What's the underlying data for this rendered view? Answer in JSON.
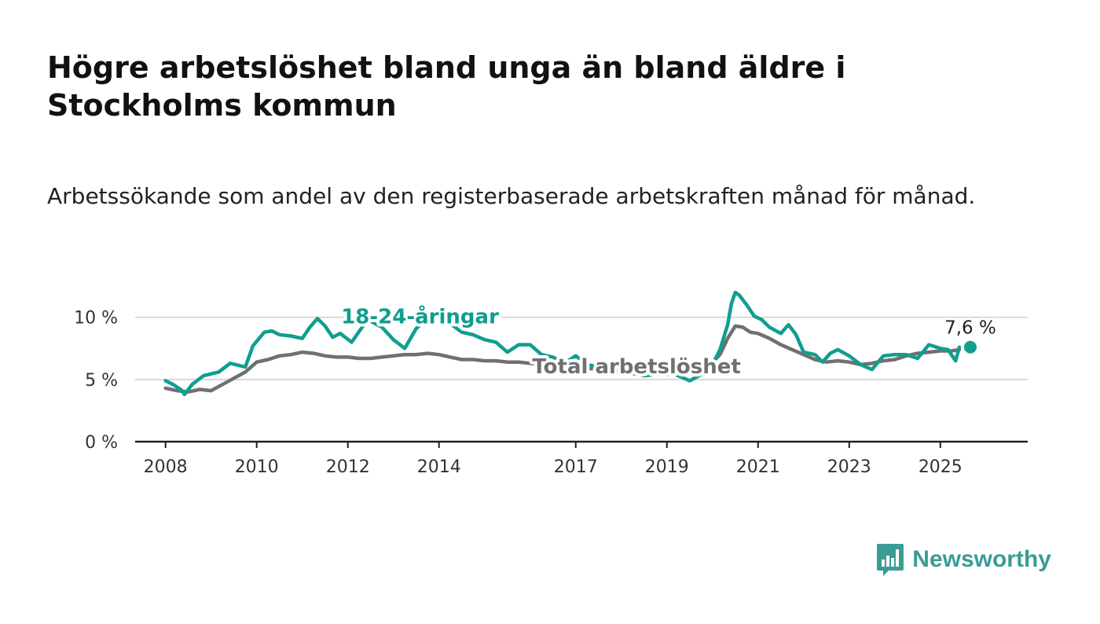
{
  "title": "Högre arbetslöshet bland unga än bland äldre i Stockholms kommun",
  "subtitle": "Arbetssökande som andel av den registerbaserade arbetskraften månad för månad.",
  "brand": {
    "name": "Newsworthy",
    "color": "#3a9c96"
  },
  "chart_data": {
    "type": "line",
    "x_axis": {
      "type": "date",
      "range": [
        "2007-05",
        "2026-12"
      ],
      "ticks": [
        {
          "date": "2008-01",
          "label": "2008"
        },
        {
          "date": "2010-01",
          "label": "2010"
        },
        {
          "date": "2012-01",
          "label": "2012"
        },
        {
          "date": "2014-01",
          "label": "2014"
        },
        {
          "date": "2017-01",
          "label": "2017"
        },
        {
          "date": "2019-01",
          "label": "2019"
        },
        {
          "date": "2021-01",
          "label": "2021"
        },
        {
          "date": "2023-01",
          "label": "2023"
        },
        {
          "date": "2025-01",
          "label": "2025"
        }
      ]
    },
    "y_axis": {
      "range": [
        0,
        11.5
      ],
      "ticks": [
        {
          "value": 0,
          "label": "0 %"
        },
        {
          "value": 5,
          "label": "5 %"
        },
        {
          "value": 10,
          "label": "10 %"
        }
      ]
    },
    "grid": true,
    "series": [
      {
        "name": "Total arbetslöshet",
        "color": "#707070",
        "label_position": "inline-middle",
        "points": [
          [
            "2008-01",
            4.3
          ],
          [
            "2008-04",
            4.1
          ],
          [
            "2008-07",
            4.0
          ],
          [
            "2008-10",
            4.2
          ],
          [
            "2009-01",
            4.1
          ],
          [
            "2009-04",
            4.6
          ],
          [
            "2009-07",
            5.1
          ],
          [
            "2009-10",
            5.6
          ],
          [
            "2010-01",
            6.4
          ],
          [
            "2010-04",
            6.6
          ],
          [
            "2010-07",
            6.9
          ],
          [
            "2010-10",
            7.0
          ],
          [
            "2011-01",
            7.2
          ],
          [
            "2011-04",
            7.1
          ],
          [
            "2011-07",
            6.9
          ],
          [
            "2011-10",
            6.8
          ],
          [
            "2012-01",
            6.8
          ],
          [
            "2012-04",
            6.7
          ],
          [
            "2012-07",
            6.7
          ],
          [
            "2012-10",
            6.8
          ],
          [
            "2013-01",
            6.9
          ],
          [
            "2013-04",
            7.0
          ],
          [
            "2013-07",
            7.0
          ],
          [
            "2013-10",
            7.1
          ],
          [
            "2014-01",
            7.0
          ],
          [
            "2014-04",
            6.8
          ],
          [
            "2014-07",
            6.6
          ],
          [
            "2014-10",
            6.6
          ],
          [
            "2015-01",
            6.5
          ],
          [
            "2015-04",
            6.5
          ],
          [
            "2015-07",
            6.4
          ],
          [
            "2015-10",
            6.4
          ],
          [
            "2016-01",
            6.3
          ],
          [
            "2016-04",
            6.2
          ],
          [
            "2016-07",
            6.0
          ],
          [
            "2016-10",
            6.0
          ],
          [
            "2017-01",
            6.0
          ],
          [
            "2017-04",
            5.9
          ],
          [
            "2017-07",
            5.8
          ],
          [
            "2017-10",
            5.7
          ],
          [
            "2018-01",
            5.6
          ],
          [
            "2018-04",
            5.5
          ],
          [
            "2018-07",
            5.4
          ],
          [
            "2018-10",
            5.4
          ],
          [
            "2019-01",
            5.4
          ],
          [
            "2019-04",
            5.6
          ],
          [
            "2019-07",
            5.8
          ],
          [
            "2019-10",
            6.0
          ],
          [
            "2020-01",
            6.4
          ],
          [
            "2020-03",
            7.0
          ],
          [
            "2020-05",
            8.3
          ],
          [
            "2020-07",
            9.3
          ],
          [
            "2020-09",
            9.2
          ],
          [
            "2020-11",
            8.8
          ],
          [
            "2021-01",
            8.7
          ],
          [
            "2021-04",
            8.3
          ],
          [
            "2021-07",
            7.8
          ],
          [
            "2021-10",
            7.4
          ],
          [
            "2022-01",
            7.0
          ],
          [
            "2022-04",
            6.6
          ],
          [
            "2022-07",
            6.4
          ],
          [
            "2022-10",
            6.5
          ],
          [
            "2023-01",
            6.4
          ],
          [
            "2023-04",
            6.2
          ],
          [
            "2023-07",
            6.3
          ],
          [
            "2023-10",
            6.5
          ],
          [
            "2024-01",
            6.6
          ],
          [
            "2024-04",
            6.9
          ],
          [
            "2024-07",
            7.1
          ],
          [
            "2024-10",
            7.2
          ],
          [
            "2025-01",
            7.3
          ],
          [
            "2025-04",
            7.3
          ],
          [
            "2025-06",
            7.4
          ]
        ]
      },
      {
        "name": "18-24-åringar",
        "color": "#0f9e8f",
        "label_position": "inline-top",
        "end_label": "7,6 %",
        "points": [
          [
            "2008-01",
            4.9
          ],
          [
            "2008-03",
            4.6
          ],
          [
            "2008-05",
            4.2
          ],
          [
            "2008-06",
            3.8
          ],
          [
            "2008-08",
            4.6
          ],
          [
            "2008-11",
            5.3
          ],
          [
            "2009-03",
            5.6
          ],
          [
            "2009-06",
            6.3
          ],
          [
            "2009-10",
            6.0
          ],
          [
            "2009-12",
            7.7
          ],
          [
            "2010-03",
            8.8
          ],
          [
            "2010-05",
            8.9
          ],
          [
            "2010-07",
            8.6
          ],
          [
            "2010-10",
            8.5
          ],
          [
            "2011-01",
            8.3
          ],
          [
            "2011-03",
            9.2
          ],
          [
            "2011-05",
            9.9
          ],
          [
            "2011-07",
            9.3
          ],
          [
            "2011-09",
            8.4
          ],
          [
            "2011-11",
            8.7
          ],
          [
            "2012-02",
            8.0
          ],
          [
            "2012-05",
            9.3
          ],
          [
            "2012-07",
            9.7
          ],
          [
            "2012-10",
            9.2
          ],
          [
            "2013-01",
            8.2
          ],
          [
            "2013-04",
            7.5
          ],
          [
            "2013-07",
            9.1
          ],
          [
            "2013-10",
            9.9
          ],
          [
            "2014-01",
            10.4
          ],
          [
            "2014-04",
            9.5
          ],
          [
            "2014-07",
            8.8
          ],
          [
            "2014-10",
            8.6
          ],
          [
            "2015-01",
            8.2
          ],
          [
            "2015-04",
            8.0
          ],
          [
            "2015-07",
            7.2
          ],
          [
            "2015-10",
            7.8
          ],
          [
            "2016-01",
            7.8
          ],
          [
            "2016-04",
            7.0
          ],
          [
            "2016-07",
            6.8
          ],
          [
            "2016-10",
            6.3
          ],
          [
            "2017-01",
            6.9
          ],
          [
            "2017-04",
            6.2
          ],
          [
            "2017-07",
            6.0
          ],
          [
            "2017-10",
            5.9
          ],
          [
            "2018-01",
            5.8
          ],
          [
            "2018-04",
            5.5
          ],
          [
            "2018-07",
            5.3
          ],
          [
            "2018-10",
            5.4
          ],
          [
            "2019-01",
            5.6
          ],
          [
            "2019-04",
            5.3
          ],
          [
            "2019-07",
            4.9
          ],
          [
            "2019-10",
            5.4
          ],
          [
            "2020-01",
            6.2
          ],
          [
            "2020-03",
            7.4
          ],
          [
            "2020-05",
            9.4
          ],
          [
            "2020-06",
            11.1
          ],
          [
            "2020-07",
            12.0
          ],
          [
            "2020-08",
            11.8
          ],
          [
            "2020-10",
            11.0
          ],
          [
            "2020-12",
            10.1
          ],
          [
            "2021-02",
            9.8
          ],
          [
            "2021-04",
            9.2
          ],
          [
            "2021-07",
            8.7
          ],
          [
            "2021-09",
            9.4
          ],
          [
            "2021-11",
            8.6
          ],
          [
            "2022-01",
            7.2
          ],
          [
            "2022-04",
            7.0
          ],
          [
            "2022-06",
            6.4
          ],
          [
            "2022-08",
            7.1
          ],
          [
            "2022-10",
            7.4
          ],
          [
            "2023-01",
            6.9
          ],
          [
            "2023-04",
            6.2
          ],
          [
            "2023-07",
            5.8
          ],
          [
            "2023-10",
            6.9
          ],
          [
            "2024-01",
            7.0
          ],
          [
            "2024-04",
            7.0
          ],
          [
            "2024-07",
            6.7
          ],
          [
            "2024-10",
            7.8
          ],
          [
            "2025-01",
            7.5
          ],
          [
            "2025-03",
            7.4
          ],
          [
            "2025-05",
            6.5
          ],
          [
            "2025-06",
            7.6
          ]
        ]
      }
    ]
  }
}
